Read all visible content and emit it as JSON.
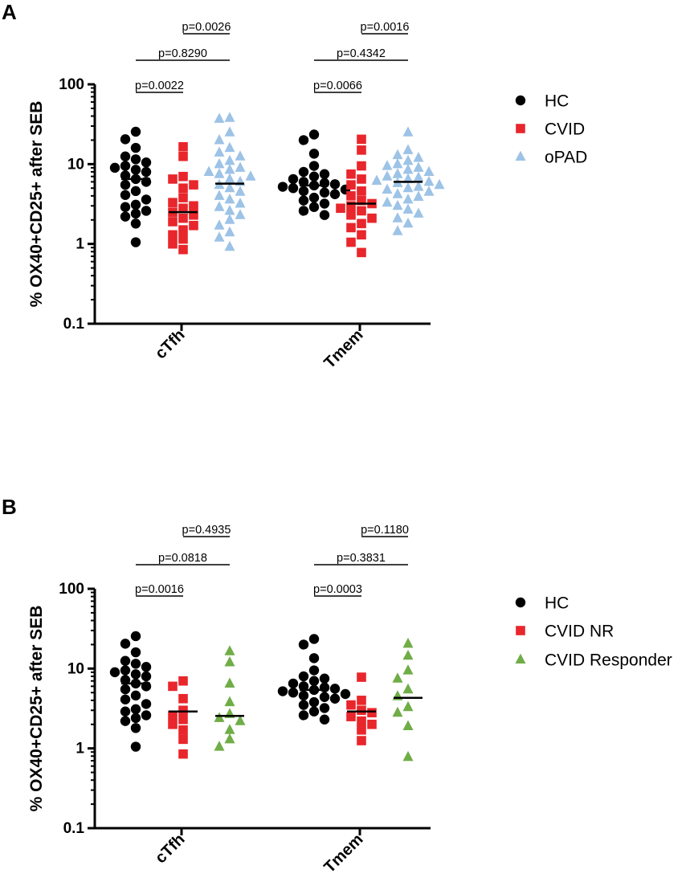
{
  "chart_data": [
    {
      "panel": "A",
      "type": "scatter",
      "ylabel": "% OX40+CD25+ after SEB",
      "yscale": "log",
      "ylim": [
        0.1,
        100
      ],
      "yticks": [
        {
          "value": 100,
          "label": "100"
        },
        {
          "value": 10,
          "label": "10"
        },
        {
          "value": 1,
          "label": "1"
        },
        {
          "value": 0.1,
          "label": "0.1"
        }
      ],
      "categories": [
        "cTfh",
        "Tmem"
      ],
      "series": [
        {
          "name": "HC",
          "color": "#000000",
          "marker": "circle",
          "values": [
            [
              25.5,
              20.5,
              16,
              12.5,
              11.5,
              10.5,
              9.5,
              9,
              8.5,
              8,
              7.2,
              6.5,
              6,
              5.5,
              4.6,
              4.1,
              3.6,
              3.1,
              2.9,
              2.6,
              2.4,
              2.2,
              1.8,
              1.05
            ],
            [
              23.5,
              20,
              13.5,
              9.5,
              8,
              7.5,
              7,
              6.5,
              6,
              5.8,
              5.6,
              5.4,
              5.2,
              5,
              4.8,
              4.6,
              4.4,
              4.2,
              3.8,
              3.5,
              3.2,
              2.9,
              2.6,
              2.3
            ]
          ],
          "medians": [
            6.5,
            5.4
          ]
        },
        {
          "name": "CVID",
          "color": "#e8262b",
          "marker": "square",
          "values": [
            [
              16.5,
              12.5,
              7,
              6.5,
              5.5,
              5,
              3.8,
              3.3,
              3,
              2.8,
              2.5,
              2.3,
              2.1,
              1.9,
              1.7,
              1.5,
              1.3,
              1.15,
              1.0,
              0.85
            ],
            [
              20.5,
              15,
              9.5,
              7.5,
              6.5,
              5.5,
              4.6,
              4,
              3.5,
              3.2,
              3,
              2.8,
              2.6,
              2.3,
              2.1,
              1.8,
              1.6,
              1.3,
              1.05,
              0.78
            ]
          ],
          "medians": [
            2.5,
            3.2
          ]
        },
        {
          "name": "oPAD",
          "color": "#9dc3e6",
          "marker": "triangle",
          "values": [
            [
              38,
              37,
              25,
              20,
              16,
              14,
              12.5,
              11,
              10,
              9,
              8.5,
              8,
              7.5,
              7,
              6.5,
              6,
              5.5,
              5,
              4.5,
              4,
              3.6,
              3.2,
              2.9,
              2.6,
              2.3,
              2,
              1.7,
              1.4,
              1.2,
              0.92
            ],
            [
              25,
              15,
              13,
              12,
              11,
              10,
              9.5,
              9,
              8.5,
              8,
              7.5,
              7,
              6.8,
              6.5,
              6.2,
              6,
              5.8,
              5.5,
              5.2,
              5,
              4.8,
              4.5,
              4.2,
              3.9,
              3.6,
              3.3,
              3,
              2.7,
              2.4,
              2.1,
              1.8,
              1.45
            ]
          ],
          "medians": [
            5.7,
            6.0
          ]
        }
      ],
      "annotations": [
        {
          "text": "p=0.0022",
          "category": 0,
          "from": 0,
          "to": 1,
          "level": 0
        },
        {
          "text": "p=0.8290",
          "category": 0,
          "from": 0,
          "to": 2,
          "level": 1
        },
        {
          "text": "p=0.0026",
          "category": 0,
          "from": 1,
          "to": 2,
          "level": 2
        },
        {
          "text": "p=0.0066",
          "category": 1,
          "from": 0,
          "to": 1,
          "level": 0
        },
        {
          "text": "p=0.4342",
          "category": 1,
          "from": 0,
          "to": 2,
          "level": 1
        },
        {
          "text": "p=0.0016",
          "category": 1,
          "from": 1,
          "to": 2,
          "level": 2
        }
      ],
      "legend_position": "right"
    },
    {
      "panel": "B",
      "type": "scatter",
      "ylabel": "% OX40+CD25+ after SEB",
      "yscale": "log",
      "ylim": [
        0.1,
        100
      ],
      "yticks": [
        {
          "value": 100,
          "label": "100"
        },
        {
          "value": 10,
          "label": "10"
        },
        {
          "value": 1,
          "label": "1"
        },
        {
          "value": 0.1,
          "label": "0.1"
        }
      ],
      "categories": [
        "cTfh",
        "Tmem"
      ],
      "series": [
        {
          "name": "HC",
          "color": "#000000",
          "marker": "circle",
          "values": [
            [
              25.5,
              20.5,
              16,
              12.5,
              11.5,
              10.5,
              9.5,
              9,
              8.5,
              8,
              7.2,
              6.5,
              6,
              5.5,
              4.6,
              4.1,
              3.6,
              3.1,
              2.9,
              2.6,
              2.4,
              2.2,
              1.8,
              1.05
            ],
            [
              23.5,
              20,
              13.5,
              9.5,
              8,
              7.5,
              7,
              6.5,
              6,
              5.8,
              5.6,
              5.4,
              5.2,
              5,
              4.8,
              4.6,
              4.4,
              4.2,
              3.8,
              3.5,
              3.2,
              2.9,
              2.6,
              2.3
            ]
          ],
          "medians": [
            6.5,
            5.4
          ]
        },
        {
          "name": "CVID NR",
          "color": "#e8262b",
          "marker": "square",
          "values": [
            [
              7,
              6,
              4.2,
              3,
              2.6,
              2.3,
              2,
              1.7,
              1.3,
              0.85
            ],
            [
              7.8,
              4,
              3.5,
              3,
              2.8,
              2.5,
              2.2,
              2,
              1.7,
              1.25
            ]
          ],
          "medians": [
            2.9,
            2.9
          ]
        },
        {
          "name": "CVID Responder",
          "color": "#70ad47",
          "marker": "triangle",
          "values": [
            [
              16.5,
              12,
              6.5,
              3.8,
              2.7,
              2.4,
              2.2,
              1.7,
              1.3,
              1.05
            ],
            [
              20.5,
              14.5,
              9.5,
              7.5,
              5.5,
              4.5,
              3.3,
              2.8,
              1.9,
              0.78
            ]
          ],
          "medians": [
            2.55,
            4.3
          ]
        }
      ],
      "annotations": [
        {
          "text": "p=0.0016",
          "category": 0,
          "from": 0,
          "to": 1,
          "level": 0
        },
        {
          "text": "p=0.0818",
          "category": 0,
          "from": 0,
          "to": 2,
          "level": 1
        },
        {
          "text": "p=0.4935",
          "category": 0,
          "from": 1,
          "to": 2,
          "level": 2
        },
        {
          "text": "p=0.0003",
          "category": 1,
          "from": 0,
          "to": 1,
          "level": 0
        },
        {
          "text": "p=0.3831",
          "category": 1,
          "from": 0,
          "to": 2,
          "level": 1
        },
        {
          "text": "p=0.1180",
          "category": 1,
          "from": 1,
          "to": 2,
          "level": 2
        }
      ],
      "legend_position": "right"
    }
  ]
}
